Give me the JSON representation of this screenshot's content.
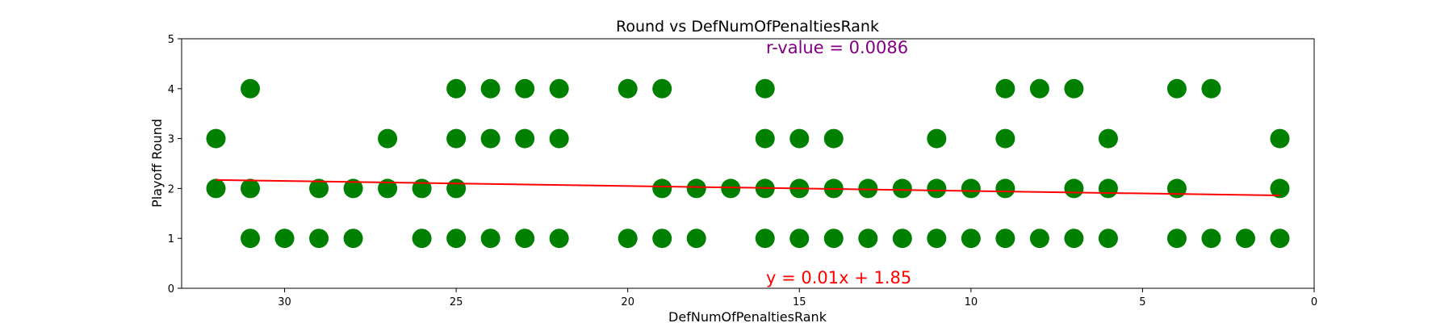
{
  "chart_data": {
    "type": "scatter",
    "title": "Round vs DefNumOfPenaltiesRank",
    "xlabel": "DefNumOfPenaltiesRank",
    "ylabel": "Playoff Round",
    "xlim": [
      33,
      0
    ],
    "ylim": [
      0,
      5
    ],
    "x_inverted": true,
    "xticks": [
      30,
      25,
      20,
      15,
      10,
      5,
      0
    ],
    "yticks": [
      0,
      1,
      2,
      3,
      4,
      5
    ],
    "grid": false,
    "point_color": "#008000",
    "line_color": "#ff0000",
    "r_color": "#800080",
    "annotations": {
      "r_value": "r-value = 0.0086",
      "equation": "y = 0.01x + 1.85"
    },
    "trendline": {
      "slope": 0.01,
      "intercept": 1.85,
      "x_range": [
        1,
        32
      ]
    },
    "points": [
      {
        "x": 32,
        "y": 3
      },
      {
        "x": 32,
        "y": 2
      },
      {
        "x": 31,
        "y": 4
      },
      {
        "x": 31,
        "y": 2
      },
      {
        "x": 31,
        "y": 1
      },
      {
        "x": 30,
        "y": 1
      },
      {
        "x": 29,
        "y": 2
      },
      {
        "x": 29,
        "y": 1
      },
      {
        "x": 28,
        "y": 2
      },
      {
        "x": 28,
        "y": 1
      },
      {
        "x": 27,
        "y": 3
      },
      {
        "x": 27,
        "y": 2
      },
      {
        "x": 26,
        "y": 2
      },
      {
        "x": 26,
        "y": 1
      },
      {
        "x": 25,
        "y": 4
      },
      {
        "x": 25,
        "y": 3
      },
      {
        "x": 25,
        "y": 2
      },
      {
        "x": 25,
        "y": 1
      },
      {
        "x": 24,
        "y": 4
      },
      {
        "x": 24,
        "y": 3
      },
      {
        "x": 24,
        "y": 1
      },
      {
        "x": 23,
        "y": 4
      },
      {
        "x": 23,
        "y": 3
      },
      {
        "x": 23,
        "y": 1
      },
      {
        "x": 22,
        "y": 4
      },
      {
        "x": 22,
        "y": 3
      },
      {
        "x": 22,
        "y": 1
      },
      {
        "x": 20,
        "y": 4
      },
      {
        "x": 20,
        "y": 1
      },
      {
        "x": 19,
        "y": 4
      },
      {
        "x": 19,
        "y": 2
      },
      {
        "x": 19,
        "y": 1
      },
      {
        "x": 18,
        "y": 2
      },
      {
        "x": 18,
        "y": 1
      },
      {
        "x": 17,
        "y": 2
      },
      {
        "x": 16,
        "y": 4
      },
      {
        "x": 16,
        "y": 3
      },
      {
        "x": 16,
        "y": 2
      },
      {
        "x": 16,
        "y": 1
      },
      {
        "x": 15,
        "y": 3
      },
      {
        "x": 15,
        "y": 2
      },
      {
        "x": 15,
        "y": 1
      },
      {
        "x": 14,
        "y": 3
      },
      {
        "x": 14,
        "y": 2
      },
      {
        "x": 14,
        "y": 1
      },
      {
        "x": 13,
        "y": 2
      },
      {
        "x": 13,
        "y": 1
      },
      {
        "x": 12,
        "y": 2
      },
      {
        "x": 12,
        "y": 1
      },
      {
        "x": 11,
        "y": 3
      },
      {
        "x": 11,
        "y": 2
      },
      {
        "x": 11,
        "y": 1
      },
      {
        "x": 10,
        "y": 2
      },
      {
        "x": 10,
        "y": 1
      },
      {
        "x": 9,
        "y": 4
      },
      {
        "x": 9,
        "y": 3
      },
      {
        "x": 9,
        "y": 2
      },
      {
        "x": 9,
        "y": 1
      },
      {
        "x": 8,
        "y": 4
      },
      {
        "x": 8,
        "y": 1
      },
      {
        "x": 7,
        "y": 4
      },
      {
        "x": 7,
        "y": 2
      },
      {
        "x": 7,
        "y": 1
      },
      {
        "x": 6,
        "y": 3
      },
      {
        "x": 6,
        "y": 2
      },
      {
        "x": 6,
        "y": 1
      },
      {
        "x": 4,
        "y": 4
      },
      {
        "x": 4,
        "y": 2
      },
      {
        "x": 4,
        "y": 1
      },
      {
        "x": 3,
        "y": 4
      },
      {
        "x": 3,
        "y": 1
      },
      {
        "x": 2,
        "y": 1
      },
      {
        "x": 1,
        "y": 3
      },
      {
        "x": 1,
        "y": 2
      },
      {
        "x": 1,
        "y": 1
      }
    ]
  }
}
